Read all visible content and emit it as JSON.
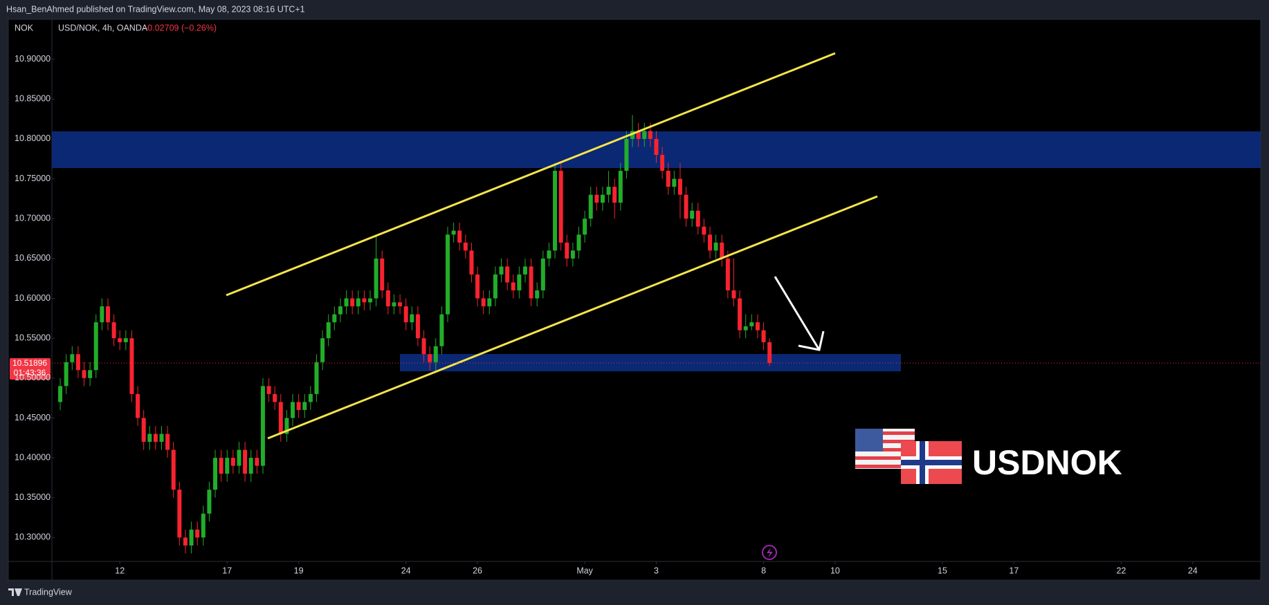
{
  "header": {
    "published": "Hsan_BenAhmed published on TradingView.com, May 08, 2023 08:16 UTC+1",
    "currency": "NOK",
    "change": "−0.02709 (−0.26%)"
  },
  "logo_text": "USDNOK",
  "footer": "TradingView",
  "chart_data": {
    "type": "candlestick",
    "title": "USD/NOK, 4h, OANDA",
    "x": [
      -10,
      -9,
      -8,
      -7,
      -6,
      -5,
      -4,
      -3,
      -2,
      -1,
      0,
      1,
      2,
      3,
      4,
      5,
      6,
      7,
      8,
      9,
      10,
      11,
      12,
      13,
      14,
      15,
      16,
      17,
      18,
      19,
      20,
      21,
      22,
      23,
      24,
      25,
      26,
      27,
      28,
      29,
      30,
      31,
      32,
      33,
      34,
      35,
      36,
      37,
      38,
      39,
      40,
      41,
      42,
      43,
      44,
      45,
      46,
      47,
      48,
      49,
      50,
      51,
      52,
      53,
      54,
      55,
      56,
      57,
      58,
      59,
      60,
      61,
      62,
      63,
      64,
      65,
      66,
      67,
      68,
      69,
      70,
      71,
      72,
      73,
      74,
      75,
      76,
      77,
      78,
      79,
      80,
      81,
      82,
      83,
      84,
      85,
      86,
      87,
      88,
      89,
      90,
      91,
      92,
      93,
      94,
      95,
      96,
      97,
      98,
      99,
      100,
      101,
      102,
      103,
      104,
      105,
      106,
      107,
      108,
      109
    ],
    "open": [
      10.47,
      10.49,
      10.52,
      10.53,
      10.51,
      10.5,
      10.51,
      10.57,
      10.59,
      10.57,
      10.55,
      10.545,
      10.55,
      10.48,
      10.45,
      10.42,
      10.43,
      10.42,
      10.43,
      10.41,
      10.36,
      10.3,
      10.29,
      10.31,
      10.3,
      10.33,
      10.36,
      10.4,
      10.38,
      10.4,
      10.39,
      10.41,
      10.38,
      10.4,
      10.39,
      10.49,
      10.48,
      10.47,
      10.43,
      10.45,
      10.47,
      10.46,
      10.47,
      10.48,
      10.52,
      10.55,
      10.57,
      10.58,
      10.59,
      10.6,
      10.59,
      10.6,
      10.595,
      10.6,
      10.65,
      10.61,
      10.59,
      10.595,
      10.59,
      10.57,
      10.58,
      10.55,
      10.53,
      10.52,
      10.54,
      10.58,
      10.68,
      10.685,
      10.67,
      10.66,
      10.63,
      10.6,
      10.59,
      10.6,
      10.63,
      10.64,
      10.62,
      10.61,
      10.63,
      10.64,
      10.6,
      10.61,
      10.65,
      10.66,
      10.76,
      10.67,
      10.65,
      10.66,
      10.68,
      10.7,
      10.73,
      10.72,
      10.73,
      10.74,
      10.72,
      10.76,
      10.8,
      10.81,
      10.8,
      10.81,
      10.8,
      10.78,
      10.76,
      10.74,
      10.75,
      10.73,
      10.7,
      10.71,
      10.69,
      10.68,
      10.66,
      10.67,
      10.65,
      10.61,
      10.6,
      10.56,
      10.565,
      10.57,
      10.56,
      10.545
    ],
    "high": [
      10.5,
      10.53,
      10.54,
      10.54,
      10.52,
      10.52,
      10.58,
      10.6,
      10.6,
      10.58,
      10.56,
      10.56,
      10.56,
      10.49,
      10.46,
      10.44,
      10.44,
      10.44,
      10.44,
      10.42,
      10.37,
      10.31,
      10.32,
      10.32,
      10.34,
      10.37,
      10.41,
      10.41,
      10.41,
      10.41,
      10.42,
      10.42,
      10.41,
      10.41,
      10.5,
      10.5,
      10.49,
      10.48,
      10.46,
      10.48,
      10.48,
      10.48,
      10.49,
      10.53,
      10.56,
      10.58,
      10.59,
      10.6,
      10.61,
      10.61,
      10.61,
      10.61,
      10.61,
      10.68,
      10.66,
      10.62,
      10.605,
      10.605,
      10.6,
      10.59,
      10.59,
      10.56,
      10.54,
      10.55,
      10.59,
      10.69,
      10.695,
      10.695,
      10.68,
      10.67,
      10.64,
      10.61,
      10.61,
      10.64,
      10.65,
      10.65,
      10.63,
      10.64,
      10.65,
      10.65,
      10.62,
      10.66,
      10.67,
      10.77,
      10.77,
      10.68,
      10.67,
      10.69,
      10.71,
      10.74,
      10.74,
      10.74,
      10.76,
      10.75,
      10.77,
      10.81,
      10.83,
      10.82,
      10.82,
      10.82,
      10.81,
      10.79,
      10.77,
      10.76,
      10.77,
      10.74,
      10.72,
      10.72,
      10.7,
      10.69,
      10.68,
      10.68,
      10.66,
      10.65,
      10.61,
      10.58,
      10.58,
      10.58,
      10.57,
      10.55
    ],
    "low": [
      10.46,
      10.48,
      10.51,
      10.5,
      10.49,
      10.49,
      10.5,
      10.56,
      10.56,
      10.54,
      10.535,
      10.535,
      10.47,
      10.44,
      10.41,
      10.41,
      10.41,
      10.41,
      10.4,
      10.35,
      10.29,
      10.28,
      10.28,
      10.29,
      10.29,
      10.32,
      10.35,
      10.37,
      10.37,
      10.38,
      10.38,
      10.37,
      10.37,
      10.38,
      10.38,
      10.47,
      10.46,
      10.42,
      10.42,
      10.44,
      10.45,
      10.45,
      10.46,
      10.47,
      10.51,
      10.54,
      10.56,
      10.57,
      10.58,
      10.58,
      10.58,
      10.585,
      10.585,
      10.59,
      10.6,
      10.58,
      10.58,
      10.58,
      10.56,
      10.56,
      10.54,
      10.52,
      10.51,
      10.51,
      10.53,
      10.57,
      10.67,
      10.66,
      10.65,
      10.62,
      10.59,
      10.58,
      10.58,
      10.59,
      10.62,
      10.61,
      10.6,
      10.6,
      10.62,
      10.59,
      10.59,
      10.6,
      10.64,
      10.65,
      10.66,
      10.64,
      10.64,
      10.65,
      10.67,
      10.69,
      10.71,
      10.71,
      10.72,
      10.7,
      10.71,
      10.75,
      10.79,
      10.79,
      10.79,
      10.79,
      10.77,
      10.75,
      10.73,
      10.73,
      10.7,
      10.69,
      10.69,
      10.68,
      10.67,
      10.65,
      10.65,
      10.64,
      10.6,
      10.59,
      10.55,
      10.55,
      10.56,
      10.55,
      10.535,
      10.515
    ],
    "close": [
      10.49,
      10.52,
      10.53,
      10.51,
      10.5,
      10.51,
      10.57,
      10.59,
      10.57,
      10.55,
      10.545,
      10.55,
      10.48,
      10.45,
      10.42,
      10.43,
      10.42,
      10.43,
      10.41,
      10.36,
      10.3,
      10.29,
      10.31,
      10.3,
      10.33,
      10.36,
      10.4,
      10.38,
      10.4,
      10.39,
      10.41,
      10.38,
      10.4,
      10.39,
      10.49,
      10.48,
      10.47,
      10.43,
      10.45,
      10.47,
      10.46,
      10.47,
      10.48,
      10.52,
      10.55,
      10.57,
      10.58,
      10.59,
      10.6,
      10.59,
      10.6,
      10.595,
      10.6,
      10.65,
      10.61,
      10.59,
      10.595,
      10.59,
      10.57,
      10.58,
      10.55,
      10.53,
      10.52,
      10.54,
      10.58,
      10.68,
      10.685,
      10.67,
      10.66,
      10.63,
      10.6,
      10.59,
      10.6,
      10.63,
      10.64,
      10.62,
      10.61,
      10.63,
      10.64,
      10.6,
      10.61,
      10.65,
      10.66,
      10.76,
      10.67,
      10.65,
      10.66,
      10.68,
      10.7,
      10.73,
      10.72,
      10.73,
      10.74,
      10.72,
      10.76,
      10.8,
      10.81,
      10.8,
      10.81,
      10.8,
      10.78,
      10.76,
      10.74,
      10.75,
      10.73,
      10.7,
      10.71,
      10.69,
      10.68,
      10.66,
      10.67,
      10.65,
      10.61,
      10.6,
      10.56,
      10.565,
      10.57,
      10.56,
      10.545,
      10.519
    ],
    "up_color": "#22ad2a",
    "down_color": "#f7232f",
    "xlim": [
      -11.4,
      191.4
    ],
    "xticks": [
      {
        "value": 0,
        "label": "12"
      },
      {
        "value": 18,
        "label": "17"
      },
      {
        "value": 30,
        "label": "19"
      },
      {
        "value": 48,
        "label": "24"
      },
      {
        "value": 60,
        "label": "26"
      },
      {
        "value": 78,
        "label": "May"
      },
      {
        "value": 90,
        "label": "3"
      },
      {
        "value": 108,
        "label": "8"
      },
      {
        "value": 120,
        "label": "10"
      },
      {
        "value": 138,
        "label": "15"
      },
      {
        "value": 150,
        "label": "17"
      },
      {
        "value": 168,
        "label": "22"
      },
      {
        "value": 180,
        "label": "24"
      }
    ],
    "ylim": [
      10.27,
      10.95
    ],
    "yticks": [
      {
        "value": 10.3,
        "label": "10.30000"
      },
      {
        "value": 10.35,
        "label": "10.35000"
      },
      {
        "value": 10.4,
        "label": "10.40000"
      },
      {
        "value": 10.45,
        "label": "10.45000"
      },
      {
        "value": 10.5,
        "label": "10.50000"
      },
      {
        "value": 10.55,
        "label": "10.55000"
      },
      {
        "value": 10.6,
        "label": "10.60000"
      },
      {
        "value": 10.65,
        "label": "10.65000"
      },
      {
        "value": 10.7,
        "label": "10.70000"
      },
      {
        "value": 10.75,
        "label": "10.75000"
      },
      {
        "value": 10.8,
        "label": "10.80000"
      },
      {
        "value": 10.85,
        "label": "10.85000"
      },
      {
        "value": 10.9,
        "label": "10.90000"
      }
    ],
    "grid": false,
    "last_price": 10.51896,
    "countdown": "01:43:36"
  }
}
